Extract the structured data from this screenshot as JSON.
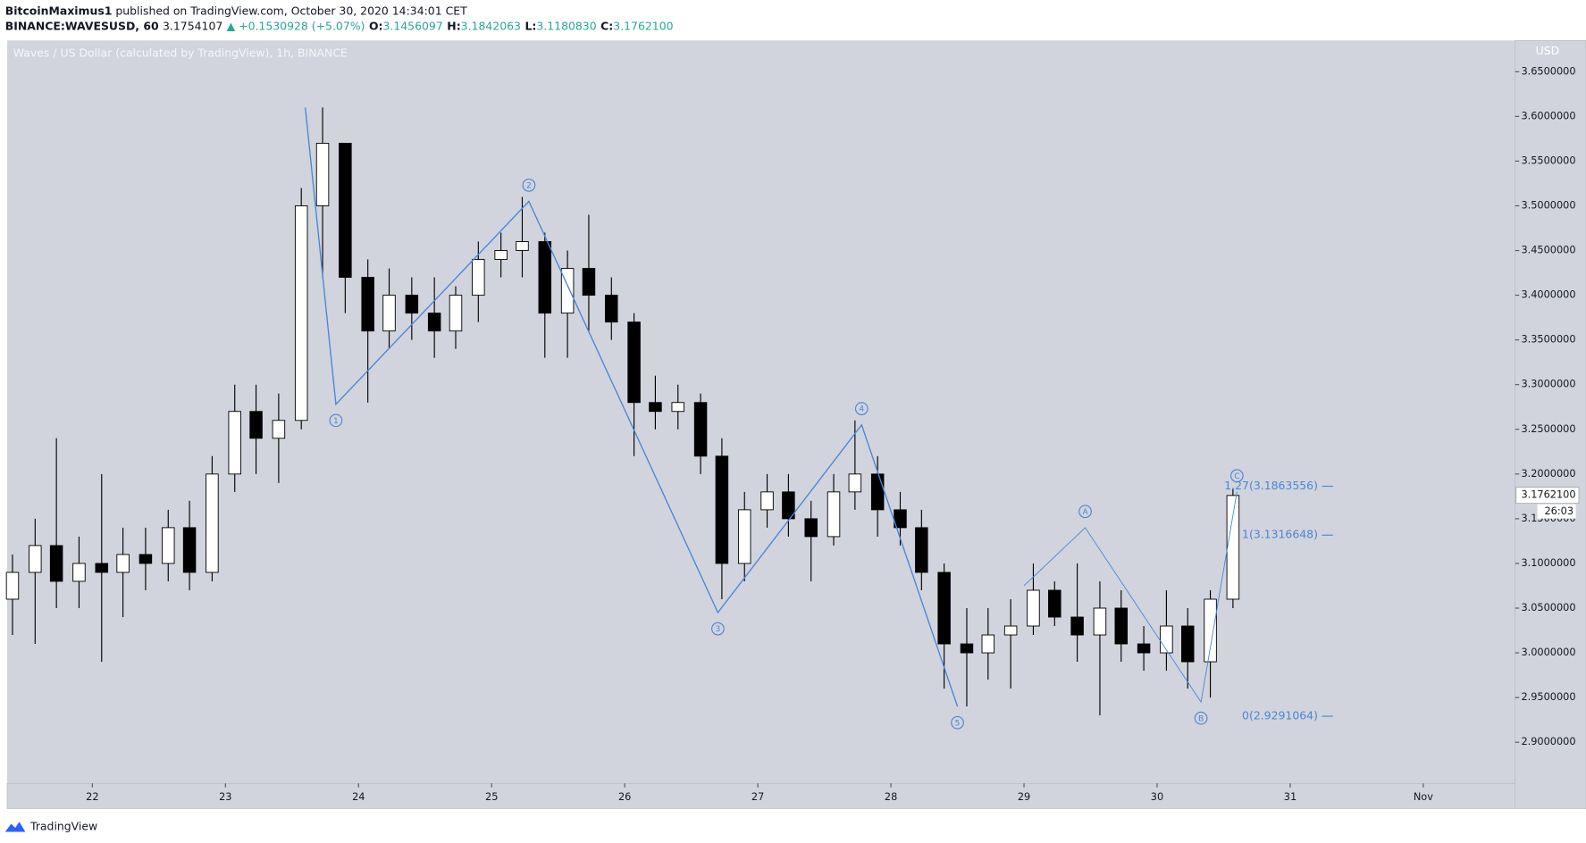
{
  "header": {
    "author": "BitcoinMaximus1",
    "published": "published on TradingView.com, October 30, 2020 14:34:01 CET",
    "symbol": "BINANCE:WAVESUSD, 60",
    "price": "3.1754107",
    "change": "▲ +0.1530928 (+5.07%)",
    "ohlc": [
      {
        "label": "O:",
        "value": "3.1456097"
      },
      {
        "label": "H:",
        "value": "3.1842063"
      },
      {
        "label": "L:",
        "value": "3.1180830"
      },
      {
        "label": "C:",
        "value": "3.1762100"
      }
    ]
  },
  "footer": {
    "brand": "TradingView"
  },
  "chart_data": {
    "type": "candlestick",
    "title": "Waves / US Dollar (calculated by TradingView), 1h, BINANCE",
    "y_axis_label": "USD",
    "up_color": "#ffffff",
    "down_color": "#000000",
    "line_color": "#4a86d8",
    "xlim": [
      21.36,
      32.69
    ],
    "ylim": [
      2.854,
      3.685
    ],
    "xticks": [
      22,
      23,
      24,
      25,
      26,
      27,
      28,
      29,
      30,
      31,
      {
        "value": 32,
        "label": "Nov"
      }
    ],
    "yticks": [
      {
        "value": 2.9,
        "label": "2.9000000"
      },
      {
        "value": 2.95,
        "label": "2.9500000"
      },
      {
        "value": 3.0,
        "label": "3.0000000"
      },
      {
        "value": 3.05,
        "label": "3.0500000"
      },
      {
        "value": 3.1,
        "label": "3.1000000"
      },
      {
        "value": 3.15,
        "label": "3.1500000"
      },
      {
        "value": 3.2,
        "label": "3.2000000"
      },
      {
        "value": 3.25,
        "label": "3.2500000"
      },
      {
        "value": 3.3,
        "label": "3.3000000"
      },
      {
        "value": 3.35,
        "label": "3.3500000"
      },
      {
        "value": 3.4,
        "label": "3.4000000"
      },
      {
        "value": 3.45,
        "label": "3.4500000"
      },
      {
        "value": 3.5,
        "label": "3.5000000"
      },
      {
        "value": 3.55,
        "label": "3.5500000"
      },
      {
        "value": 3.6,
        "label": "3.6000000"
      },
      {
        "value": 3.65,
        "label": "3.6500000"
      }
    ],
    "x": [
      21.4,
      21.57,
      21.73,
      21.9,
      22.07,
      22.23,
      22.4,
      22.57,
      22.73,
      22.9,
      23.07,
      23.23,
      23.4,
      23.57,
      23.73,
      23.9,
      24.07,
      24.23,
      24.4,
      24.57,
      24.73,
      24.9,
      25.07,
      25.23,
      25.4,
      25.57,
      25.73,
      25.9,
      26.07,
      26.23,
      26.4,
      26.57,
      26.73,
      26.9,
      27.07,
      27.23,
      27.4,
      27.57,
      27.73,
      27.9,
      28.07,
      28.23,
      28.4,
      28.57,
      28.73,
      28.9,
      29.07,
      29.23,
      29.4,
      29.57,
      29.73,
      29.9,
      30.07,
      30.23,
      30.4,
      30.57
    ],
    "ohlc": [
      [
        3.06,
        3.11,
        3.02,
        3.09
      ],
      [
        3.09,
        3.15,
        3.01,
        3.12
      ],
      [
        3.12,
        3.24,
        3.05,
        3.08
      ],
      [
        3.08,
        3.13,
        3.05,
        3.1
      ],
      [
        3.1,
        3.2,
        2.99,
        3.09
      ],
      [
        3.09,
        3.14,
        3.04,
        3.11
      ],
      [
        3.11,
        3.14,
        3.07,
        3.1
      ],
      [
        3.1,
        3.16,
        3.08,
        3.14
      ],
      [
        3.14,
        3.17,
        3.07,
        3.09
      ],
      [
        3.09,
        3.22,
        3.08,
        3.2
      ],
      [
        3.2,
        3.3,
        3.18,
        3.27
      ],
      [
        3.27,
        3.3,
        3.2,
        3.24
      ],
      [
        3.24,
        3.29,
        3.19,
        3.26
      ],
      [
        3.26,
        3.52,
        3.25,
        3.5
      ],
      [
        3.5,
        3.61,
        3.42,
        3.57
      ],
      [
        3.57,
        3.57,
        3.38,
        3.42
      ],
      [
        3.42,
        3.44,
        3.28,
        3.36
      ],
      [
        3.36,
        3.43,
        3.34,
        3.4
      ],
      [
        3.4,
        3.42,
        3.35,
        3.38
      ],
      [
        3.38,
        3.42,
        3.33,
        3.36
      ],
      [
        3.36,
        3.41,
        3.34,
        3.4
      ],
      [
        3.4,
        3.46,
        3.37,
        3.44
      ],
      [
        3.44,
        3.47,
        3.42,
        3.45
      ],
      [
        3.45,
        3.51,
        3.42,
        3.46
      ],
      [
        3.46,
        3.47,
        3.33,
        3.38
      ],
      [
        3.38,
        3.45,
        3.33,
        3.43
      ],
      [
        3.43,
        3.49,
        3.36,
        3.4
      ],
      [
        3.4,
        3.42,
        3.35,
        3.37
      ],
      [
        3.37,
        3.38,
        3.22,
        3.28
      ],
      [
        3.28,
        3.31,
        3.25,
        3.27
      ],
      [
        3.27,
        3.3,
        3.25,
        3.28
      ],
      [
        3.28,
        3.29,
        3.2,
        3.22
      ],
      [
        3.22,
        3.24,
        3.06,
        3.1
      ],
      [
        3.1,
        3.18,
        3.08,
        3.16
      ],
      [
        3.16,
        3.2,
        3.14,
        3.18
      ],
      [
        3.18,
        3.2,
        3.13,
        3.15
      ],
      [
        3.15,
        3.17,
        3.08,
        3.13
      ],
      [
        3.13,
        3.2,
        3.12,
        3.18
      ],
      [
        3.18,
        3.26,
        3.16,
        3.2
      ],
      [
        3.2,
        3.22,
        3.13,
        3.16
      ],
      [
        3.16,
        3.18,
        3.12,
        3.14
      ],
      [
        3.14,
        3.16,
        3.07,
        3.09
      ],
      [
        3.09,
        3.1,
        2.96,
        3.01
      ],
      [
        3.01,
        3.05,
        2.94,
        3.0
      ],
      [
        3.0,
        3.05,
        2.97,
        3.02
      ],
      [
        3.02,
        3.06,
        2.96,
        3.03
      ],
      [
        3.03,
        3.1,
        3.02,
        3.07
      ],
      [
        3.07,
        3.08,
        3.03,
        3.04
      ],
      [
        3.04,
        3.1,
        2.99,
        3.02
      ],
      [
        3.02,
        3.08,
        2.93,
        3.05
      ],
      [
        3.05,
        3.07,
        2.99,
        3.01
      ],
      [
        3.01,
        3.03,
        2.98,
        3.0
      ],
      [
        3.0,
        3.07,
        2.98,
        3.03
      ],
      [
        3.03,
        3.05,
        2.96,
        2.99
      ],
      [
        2.99,
        3.07,
        2.95,
        3.06
      ],
      [
        3.06,
        3.184,
        3.05,
        3.176
      ]
    ],
    "waves": [
      {
        "x": [
          23.6,
          23.83,
          25.28,
          26.7,
          27.78,
          28.5
        ],
        "y": [
          3.61,
          3.278,
          3.505,
          3.045,
          3.255,
          2.94
        ],
        "labels": [
          null,
          "1",
          "2",
          "3",
          "4",
          "5"
        ],
        "label_pos": [
          "",
          "below",
          "above",
          "below",
          "above",
          "below"
        ]
      },
      {
        "x": [
          29.0,
          29.46,
          30.33,
          30.6
        ],
        "y": [
          3.075,
          3.14,
          2.945,
          3.18
        ],
        "labels": [
          null,
          "A",
          "B",
          "C"
        ],
        "label_pos": [
          "",
          "above",
          "below",
          "above"
        ]
      }
    ],
    "levels": [
      {
        "label": "1.27(3.1863556)",
        "value": 3.1863556
      },
      {
        "label": "1(3.1316648)",
        "value": 3.1316648
      },
      {
        "label": "0(2.9291064)",
        "value": 2.9291064
      }
    ],
    "last_price": {
      "value": 3.17621,
      "label": "3.1762100"
    },
    "countdown": "26:03"
  }
}
